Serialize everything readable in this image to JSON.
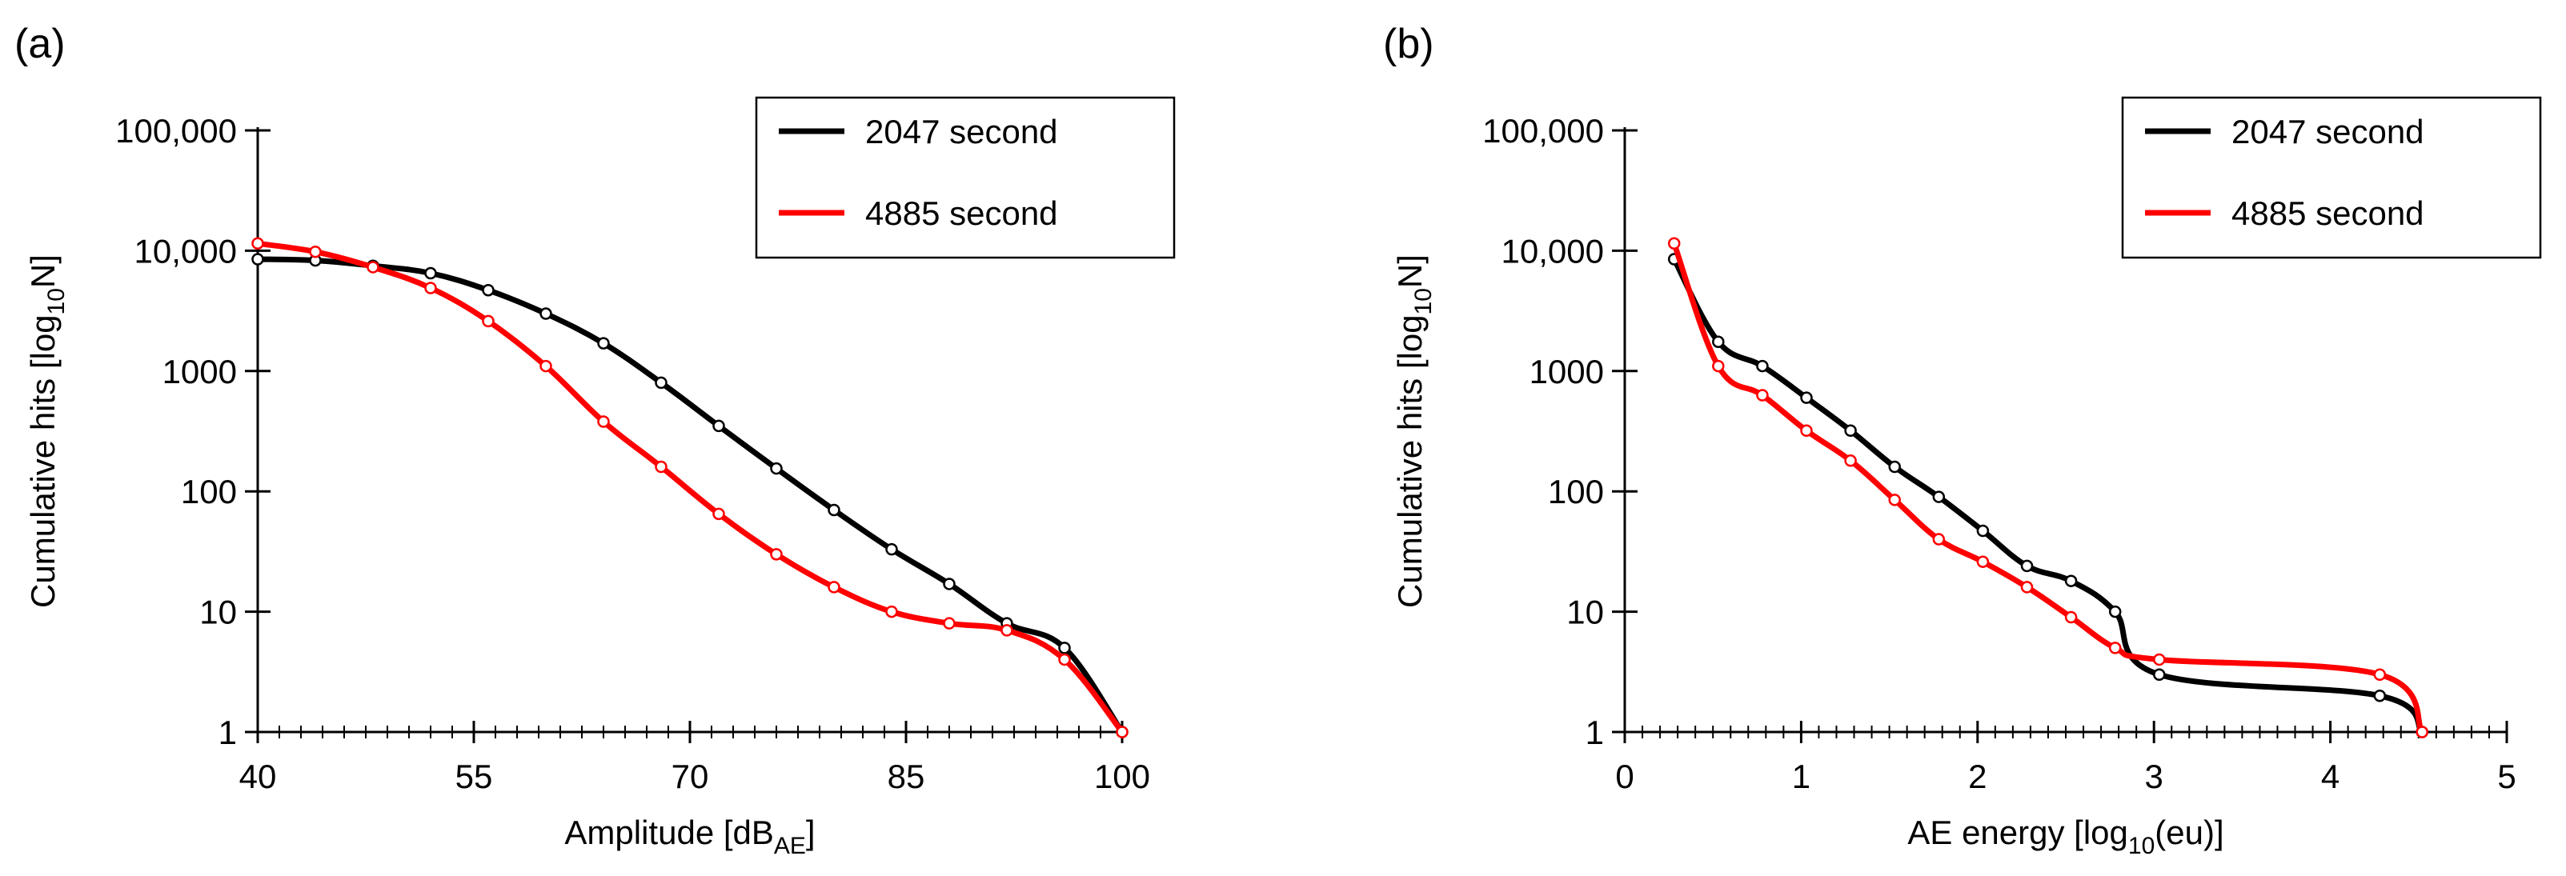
{
  "chart_data": [
    {
      "panel": "(a)",
      "type": "line",
      "xlabel_main": "Amplitude [dB",
      "xlabel_sub": "AE",
      "xlabel_end": "]",
      "ylabel_main": "Cumulative hits [log",
      "ylabel_sub": "10",
      "ylabel_end": "N]",
      "xlim": [
        40,
        100
      ],
      "ylim": [
        1,
        100000
      ],
      "yscale": "log",
      "xticks": [
        40,
        55,
        70,
        85,
        100
      ],
      "xtick_labels": [
        "40",
        "55",
        "70",
        "85",
        "100"
      ],
      "yticks": [
        1,
        10,
        100,
        1000,
        10000,
        100000
      ],
      "ytick_labels": [
        "1",
        "10",
        "100",
        "1000",
        "10,000",
        "100,000"
      ],
      "legend_position": "top-right",
      "series": [
        {
          "name": "2047 second",
          "color": "#000000",
          "x": [
            40,
            44,
            48,
            52,
            56,
            60,
            64,
            68,
            72,
            76,
            80,
            84,
            88,
            92,
            96,
            100
          ],
          "y": [
            8500,
            8300,
            7500,
            6500,
            4700,
            3000,
            1700,
            800,
            350,
            155,
            70,
            33,
            17,
            8,
            5,
            1
          ]
        },
        {
          "name": "4885 second",
          "color": "#ff0000",
          "x": [
            40,
            44,
            48,
            52,
            56,
            60,
            64,
            68,
            72,
            76,
            80,
            84,
            88,
            92,
            96,
            100
          ],
          "y": [
            11500,
            9800,
            7300,
            4900,
            2600,
            1100,
            380,
            160,
            65,
            30,
            16,
            10,
            8,
            7,
            4,
            1
          ]
        }
      ]
    },
    {
      "panel": "(b)",
      "type": "line",
      "xlabel_main": "AE energy [log",
      "xlabel_sub": "10",
      "xlabel_end": "(eu)]",
      "ylabel_main": "Cumulative hits [log",
      "ylabel_sub": "10",
      "ylabel_end": "N]",
      "xlim": [
        0,
        5
      ],
      "ylim": [
        1,
        100000
      ],
      "yscale": "log",
      "xticks": [
        0,
        1,
        2,
        3,
        4,
        5
      ],
      "xtick_labels": [
        "0",
        "1",
        "2",
        "3",
        "4",
        "5"
      ],
      "yticks": [
        1,
        10,
        100,
        1000,
        10000,
        100000
      ],
      "ytick_labels": [
        "1",
        "10",
        "100",
        "1000",
        "10,000",
        "100,000"
      ],
      "legend_position": "top-right",
      "series": [
        {
          "name": "2047 second",
          "color": "#000000",
          "x": [
            0.28,
            0.53,
            0.78,
            1.03,
            1.28,
            1.53,
            1.78,
            2.03,
            2.28,
            2.53,
            2.78,
            3.03,
            4.28,
            4.52
          ],
          "y": [
            8500,
            1750,
            1100,
            600,
            320,
            160,
            90,
            47,
            24,
            18,
            10,
            3,
            2,
            1
          ]
        },
        {
          "name": "4885 second",
          "color": "#ff0000",
          "x": [
            0.28,
            0.53,
            0.78,
            1.03,
            1.28,
            1.53,
            1.78,
            2.03,
            2.28,
            2.53,
            2.78,
            3.03,
            4.28,
            4.52
          ],
          "y": [
            11500,
            1100,
            630,
            320,
            180,
            85,
            40,
            26,
            16,
            9,
            5,
            4,
            3,
            1
          ]
        }
      ]
    }
  ]
}
